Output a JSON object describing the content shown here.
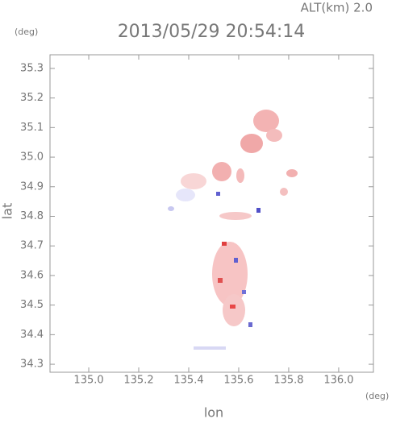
{
  "chart_data": {
    "type": "image",
    "title": "2013/05/29 20:54:14",
    "corner_label": "ALT(km) 2.0",
    "y_unit": "(deg)",
    "x_unit": "(deg)",
    "xlabel": "lon",
    "ylabel": "lat",
    "xlim": [
      134.845,
      136.139
    ],
    "ylim": [
      34.273,
      35.346
    ],
    "xticks": [
      {
        "value": 135,
        "label": "135.0"
      },
      {
        "value": 135.2,
        "label": "135.2"
      },
      {
        "value": 135.4,
        "label": "135.4"
      },
      {
        "value": 135.6,
        "label": "135.6"
      },
      {
        "value": 135.8,
        "label": "135.8"
      },
      {
        "value": 136,
        "label": "136.0"
      }
    ],
    "yticks": [
      34.3,
      34.4,
      34.5,
      34.6,
      34.7,
      34.8,
      34.9,
      {
        "value": 35,
        "label": "35.0"
      },
      35.1,
      35.2,
      35.3
    ]
  }
}
